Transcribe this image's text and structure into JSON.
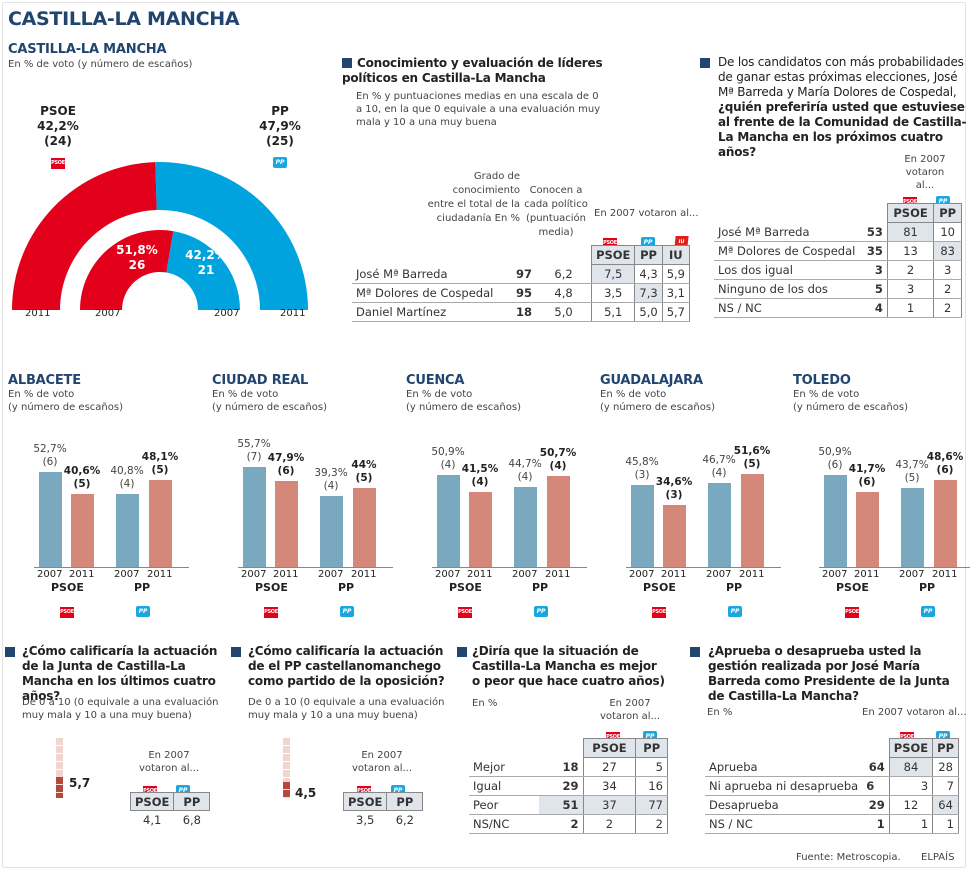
{
  "main_title": "CASTILLA-LA MANCHA",
  "regional": {
    "title": "CASTILLA-LA MANCHA",
    "subtitle": "En % de voto (y número de escaños)",
    "psoe_label": "PSOE",
    "pp_label": "PP",
    "psoe_2011": "42,2%",
    "psoe_2011_seats": "(24)",
    "pp_2011": "47,9%",
    "pp_2011_seats": "(25)",
    "psoe_2007": "51,8%",
    "psoe_2007_seats": "26",
    "pp_2007": "42,2%",
    "pp_2007_seats": "21",
    "years": [
      "2011",
      "2007",
      "2007",
      "2011"
    ],
    "logo_psoe": "PSOE",
    "logo_pp": "PP"
  },
  "chart_data": [
    {
      "type": "pie",
      "title": "CASTILLA-LA MANCHA",
      "subtitle": "En % de voto (y número de escaños)",
      "note": "semicircle parliament rings",
      "series": [
        {
          "name": "2011",
          "categories": [
            "PSOE",
            "PP"
          ],
          "values": [
            42.2,
            47.9
          ],
          "seats": [
            24,
            25
          ]
        },
        {
          "name": "2007",
          "categories": [
            "PSOE",
            "PP"
          ],
          "values": [
            51.8,
            42.2
          ],
          "seats": [
            26,
            21
          ]
        }
      ],
      "colors": {
        "PSOE": "#e2001a",
        "PP": "#00a3dd"
      }
    },
    {
      "type": "bar",
      "title": "ALBACETE",
      "categories": [
        "PSOE 2007",
        "PSOE 2011",
        "PP 2007",
        "PP 2011"
      ],
      "values": [
        52.7,
        40.6,
        40.8,
        48.1
      ],
      "seats": [
        6,
        5,
        4,
        5
      ]
    },
    {
      "type": "bar",
      "title": "CIUDAD REAL",
      "categories": [
        "PSOE 2007",
        "PSOE 2011",
        "PP 2007",
        "PP 2011"
      ],
      "values": [
        55.7,
        47.9,
        39.3,
        44
      ],
      "seats": [
        7,
        6,
        4,
        5
      ]
    },
    {
      "type": "bar",
      "title": "CUENCA",
      "categories": [
        "PSOE 2007",
        "PSOE 2011",
        "PP 2007",
        "PP 2011"
      ],
      "values": [
        50.9,
        41.5,
        44.7,
        50.7
      ],
      "seats": [
        4,
        4,
        4,
        4
      ]
    },
    {
      "type": "bar",
      "title": "GUADALAJARA",
      "categories": [
        "PSOE 2007",
        "PSOE 2011",
        "PP 2007",
        "PP 2011"
      ],
      "values": [
        45.8,
        34.6,
        46.7,
        51.6
      ],
      "seats": [
        3,
        3,
        4,
        5
      ]
    },
    {
      "type": "bar",
      "title": "TOLEDO",
      "categories": [
        "PSOE 2007",
        "PSOE 2011",
        "PP 2007",
        "PP 2011"
      ],
      "values": [
        50.9,
        41.7,
        43.7,
        48.6
      ],
      "seats": [
        6,
        6,
        5,
        6
      ]
    },
    {
      "type": "bar",
      "title": "¿Cómo calificaría la actuación de la Junta de Castilla-La Mancha en los últimos cuatro años?",
      "values": [
        5.7
      ],
      "ylim": [
        0,
        10
      ]
    },
    {
      "type": "bar",
      "title": "¿Cómo calificaría la actuación de el PP castellanomanchego como partido de la oposición?",
      "values": [
        4.5
      ],
      "ylim": [
        0,
        10
      ]
    }
  ],
  "provinces": {
    "subtitle1": "En % de voto",
    "subtitle2": "(y número de escaños)",
    "party_psoe": "PSOE",
    "party_pp": "PP",
    "y2007": "2007",
    "y2011": "2011",
    "items": [
      {
        "name": "ALBACETE",
        "labels": [
          "52,7%",
          "40,6%",
          "40,8%",
          "48,1%"
        ],
        "seats": [
          "(6)",
          "(5)",
          "(4)",
          "(5)"
        ]
      },
      {
        "name": "CIUDAD REAL",
        "labels": [
          "55,7%",
          "47,9%",
          "39,3%",
          "44%"
        ],
        "seats": [
          "(7)",
          "(6)",
          "(4)",
          "(5)"
        ]
      },
      {
        "name": "CUENCA",
        "labels": [
          "50,9%",
          "41,5%",
          "44,7%",
          "50,7%"
        ],
        "seats": [
          "(4)",
          "(4)",
          "(4)",
          "(4)"
        ]
      },
      {
        "name": "GUADALAJARA",
        "labels": [
          "45,8%",
          "34,6%",
          "46,7%",
          "51,6%"
        ],
        "seats": [
          "(3)",
          "(3)",
          "(4)",
          "(5)"
        ]
      },
      {
        "name": "TOLEDO",
        "labels": [
          "50,9%",
          "41,7%",
          "43,7%",
          "48,6%"
        ],
        "seats": [
          "(6)",
          "(6)",
          "(5)",
          "(6)"
        ]
      }
    ]
  },
  "leaders": {
    "title": "Conocimiento y evaluación de líderes políticos en Castilla-La Mancha",
    "subtitle": "En % y puntuaciones medias en una escala de 0 a 10, en la que 0 equivale a una evaluación muy mala y 10 a una muy buena",
    "col1_header": "Grado de conocimiento entre el total de la ciudadanía En %",
    "col2_header": "Conocen a cada político (puntuación media)",
    "voted_header": "En 2007 votaron al...",
    "parties": [
      "PSOE",
      "PP",
      "IU"
    ],
    "rows": [
      {
        "name": "José Mª Barreda",
        "known": "97",
        "score": "6,2",
        "psoe": "7,5",
        "pp": "4,3",
        "iu": "5,9"
      },
      {
        "name": "Mª Dolores de Cospedal",
        "known": "95",
        "score": "4,8",
        "psoe": "3,5",
        "pp": "7,3",
        "iu": "3,1"
      },
      {
        "name": "Daniel Martínez",
        "known": "18",
        "score": "5,0",
        "psoe": "5,1",
        "pp": "5,0",
        "iu": "5,7"
      }
    ]
  },
  "preference": {
    "title_normal": "De los candidatos con más probabilidades de ganar estas próximas elecciones, José Mª Barreda y María Dolores de Cospedal,",
    "title_bold": "¿quién preferiría usted que estuviese al frente de la Comunidad de Castilla-La Mancha en los próximos cuatro años?",
    "voted_header": "En 2007 votaron al...",
    "parties": [
      "PSOE",
      "PP"
    ],
    "rows": [
      {
        "name": "José Mª Barreda",
        "total": "53",
        "psoe": "81",
        "pp": "10"
      },
      {
        "name": "Mª Dolores de Cospedal",
        "total": "35",
        "psoe": "13",
        "pp": "83"
      },
      {
        "name": "Los dos igual",
        "total": "3",
        "psoe": "2",
        "pp": "3"
      },
      {
        "name": "Ninguno de los dos",
        "total": "5",
        "psoe": "3",
        "pp": "2"
      },
      {
        "name": "NS / NC",
        "total": "4",
        "psoe": "1",
        "pp": "2"
      }
    ]
  },
  "junta": {
    "title": "¿Cómo calificaría la actuación de la Junta de Castilla-La Mancha en los últimos cuatro años?",
    "subtitle": "De 0 a 10 (0 equivale a una evaluación muy mala y 10 a una muy buena)",
    "score": "5,7",
    "score_value": 5.7,
    "voted_header": "En 2007 votaron al...",
    "parties": [
      "PSOE",
      "PP"
    ],
    "values": [
      "4,1",
      "6,8"
    ]
  },
  "opposition": {
    "title": "¿Cómo calificaría la actuación de el PP castellanomanchego como partido de la oposición?",
    "subtitle": "De 0 a 10 (0 equivale a una evaluación muy mala y 10 a una muy buena)",
    "score": "4,5",
    "score_value": 4.5,
    "voted_header": "En 2007 votaron al...",
    "parties": [
      "PSOE",
      "PP"
    ],
    "values": [
      "3,5",
      "6,2"
    ]
  },
  "situation": {
    "title": "¿Diría que la situación de Castilla-La Mancha es mejor o peor que hace cuatro años)",
    "unit": "En %",
    "voted_header": "En 2007 votaron al...",
    "parties": [
      "PSOE",
      "PP"
    ],
    "rows": [
      {
        "name": "Mejor",
        "total": "18",
        "psoe": "27",
        "pp": "5"
      },
      {
        "name": "Igual",
        "total": "29",
        "psoe": "34",
        "pp": "16"
      },
      {
        "name": "Peor",
        "total": "51",
        "psoe": "37",
        "pp": "77"
      },
      {
        "name": "NS/NC",
        "total": "2",
        "psoe": "2",
        "pp": "2"
      }
    ]
  },
  "approval": {
    "title": "¿Aprueba o desaprueba usted la gestión realizada  por José María Barreda como Presidente de la Junta de Castilla-La Mancha?",
    "unit": "En %",
    "voted_header": "En 2007 votaron al...",
    "parties": [
      "PSOE",
      "PP"
    ],
    "rows": [
      {
        "name": "Aprueba",
        "total": "64",
        "psoe": "84",
        "pp": "28"
      },
      {
        "name": "Ni aprueba ni desaprueba",
        "total": "6",
        "psoe": "3",
        "pp": "7"
      },
      {
        "name": "Desaprueba",
        "total": "29",
        "psoe": "12",
        "pp": "64"
      },
      {
        "name": "NS / NC",
        "total": "1",
        "psoe": "1",
        "pp": "1"
      }
    ]
  },
  "footer": {
    "source": "Fuente: Metroscopia.",
    "brand": "ELPAÍS"
  }
}
